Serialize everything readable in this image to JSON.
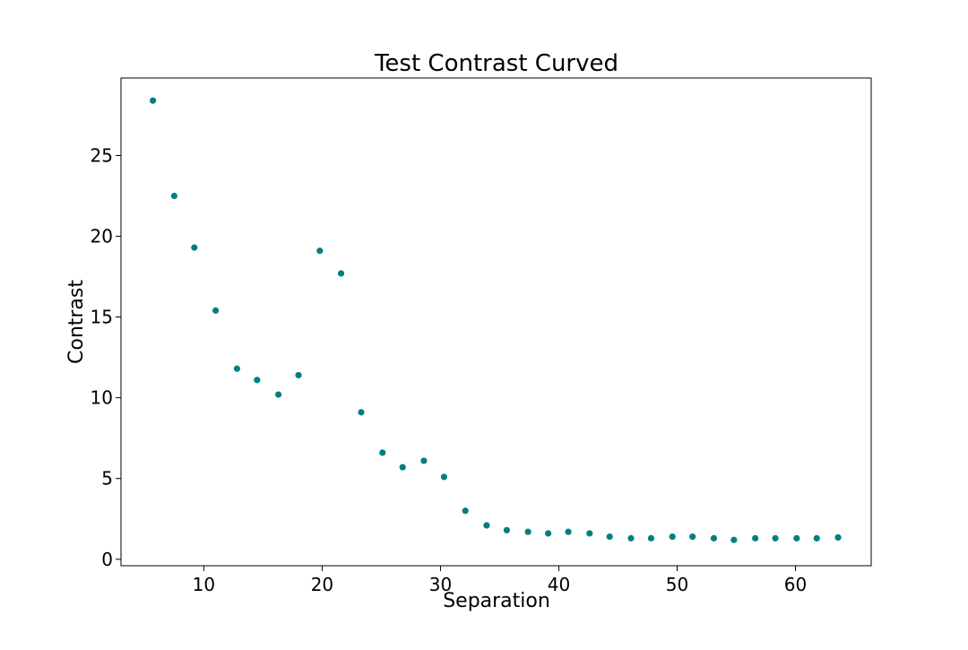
{
  "chart_data": {
    "type": "scatter",
    "title": "Test Contrast Curved",
    "xlabel": "Separation",
    "ylabel": "Contrast",
    "xlim": [
      3,
      66.4
    ],
    "ylim": [
      -0.4,
      29.8
    ],
    "xticks": [
      10,
      20,
      30,
      40,
      50,
      60
    ],
    "yticks": [
      0,
      5,
      10,
      15,
      20,
      25
    ],
    "grid": false,
    "marker_color": "#008080",
    "series": [
      {
        "x": [
          5.7,
          7.5,
          9.2,
          11.0,
          12.8,
          14.5,
          16.3,
          18.0,
          19.8,
          21.6,
          23.3,
          25.1,
          26.8,
          28.6,
          30.3,
          32.1,
          33.9,
          35.6,
          37.4,
          39.1,
          40.8,
          42.6,
          44.3,
          46.1,
          47.8,
          49.6,
          51.3,
          53.1,
          54.8,
          56.6,
          58.3,
          60.1,
          61.8,
          63.6
        ],
        "y": [
          28.4,
          22.5,
          19.3,
          15.4,
          11.8,
          11.1,
          10.2,
          11.4,
          19.1,
          17.7,
          9.1,
          6.6,
          5.7,
          6.1,
          5.1,
          3.0,
          2.1,
          1.8,
          1.7,
          1.6,
          1.7,
          1.6,
          1.4,
          1.3,
          1.3,
          1.4,
          1.4,
          1.3,
          1.2,
          1.3,
          1.3,
          1.3,
          1.3,
          1.35
        ]
      }
    ]
  }
}
